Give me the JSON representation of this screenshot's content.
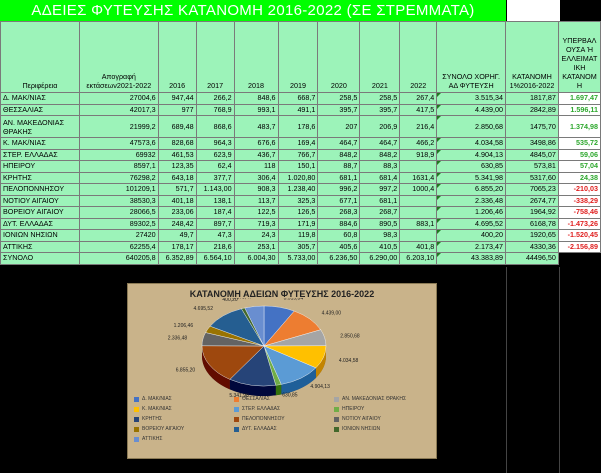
{
  "title": "ΑΔΕΙΕΣ ΦΥΤΕΥΣΗΣ ΚΑΤΑΝΟΜΗ 2016-2022 (ΣΕ ΣΤΡΕΜΜΑΤΑ)",
  "headers": {
    "region": "Περιφέρεια",
    "census": "Απογραφή εκτάσεων2021-2022",
    "y2016": "2016",
    "y2017": "2017",
    "y2018": "2018",
    "y2019": "2019",
    "y2020": "2020",
    "y2021": "2021",
    "y2022": "2022",
    "total": "ΣΥΝΟΛΟ ΧΟΡΗΓ. ΑΔ ΦΥΤΕΥΣΗ",
    "allocation": "ΚΑΤΑΝΟΜΗ 1%2016-2022",
    "diff": "ΥΠΕΡΒΑΛ ΟΥΣΑ Ή ΕΛΛΕΙΜΑΤ ΙΚΗ ΚΑΤΑΝΟΜ Η"
  },
  "rows": [
    {
      "region": "Δ. ΜΑΚ/ΝΙΑΣ",
      "census": "27004,6",
      "y2016": "947,44",
      "y2017": "266,2",
      "y2018": "848,6",
      "y2019": "668,7",
      "y2020": "258,5",
      "y2021": "258,5",
      "y2022": "267,4",
      "total": "3.515,34",
      "allocation": "1817,87",
      "diff": "1.697,47",
      "sign": "pos"
    },
    {
      "region": "ΘΕΣΣΑΛΙΑΣ",
      "census": "42017,3",
      "y2016": "977",
      "y2017": "768,9",
      "y2018": "993,1",
      "y2019": "491,1",
      "y2020": "395,7",
      "y2021": "395,7",
      "y2022": "417,5",
      "total": "4.439,00",
      "allocation": "2842,89",
      "diff": "1.596,11",
      "sign": "pos"
    },
    {
      "region": "ΑΝ. ΜΑΚΕΔΟΝΙΑΣ ΘΡΑΚΗΣ",
      "census": "21999,2",
      "y2016": "689,48",
      "y2017": "868,6",
      "y2018": "483,7",
      "y2019": "178,6",
      "y2020": "207",
      "y2021": "206,9",
      "y2022": "216,4",
      "total": "2.850,68",
      "allocation": "1475,70",
      "diff": "1.374,98",
      "sign": "pos",
      "tall": true
    },
    {
      "region": "Κ. ΜΑΚ/ΝΙΑΣ",
      "census": "47573,6",
      "y2016": "828,68",
      "y2017": "964,3",
      "y2018": "676,6",
      "y2019": "169,4",
      "y2020": "464,7",
      "y2021": "464,7",
      "y2022": "466,2",
      "total": "4.034,58",
      "allocation": "3498,86",
      "diff": "535,72",
      "sign": "pos"
    },
    {
      "region": "ΣΤΕΡ. ΕΛΛΑΔΑΣ",
      "census": "69932",
      "y2016": "461,53",
      "y2017": "623,9",
      "y2018": "436,7",
      "y2019": "766,7",
      "y2020": "848,2",
      "y2021": "848,2",
      "y2022": "918,9",
      "total": "4.904,13",
      "allocation": "4845,07",
      "diff": "59,06",
      "sign": "pos"
    },
    {
      "region": "ΗΠΕΙΡΟΥ",
      "census": "8597,1",
      "y2016": "123,35",
      "y2017": "62,4",
      "y2018": "118",
      "y2019": "150,1",
      "y2020": "88,7",
      "y2021": "88,3",
      "y2022": "",
      "total": "630,85",
      "allocation": "573,81",
      "diff": "57,04",
      "sign": "pos"
    },
    {
      "region": "ΚΡΗΤΗΣ",
      "census": "76298,2",
      "y2016": "643,18",
      "y2017": "377,7",
      "y2018": "306,4",
      "y2019": "1.020,80",
      "y2020": "681,1",
      "y2021": "681,4",
      "y2022": "1631,4",
      "total": "5.341,98",
      "allocation": "5317,60",
      "diff": "24,38",
      "sign": "pos"
    },
    {
      "region": "ΠΕΛΟΠΟΝΝΗΣΟΥ",
      "census": "101209,1",
      "y2016": "571,7",
      "y2017": "1.143,00",
      "y2018": "908,3",
      "y2019": "1.238,40",
      "y2020": "996,2",
      "y2021": "997,2",
      "y2022": "1000,4",
      "total": "6.855,20",
      "allocation": "7065,23",
      "diff": "-210,03",
      "sign": "neg"
    },
    {
      "region": "ΝΟΤΙΟΥ ΑΙΓΑΙΟΥ",
      "census": "38530,3",
      "y2016": "401,18",
      "y2017": "138,1",
      "y2018": "113,7",
      "y2019": "325,3",
      "y2020": "677,1",
      "y2021": "681,1",
      "y2022": "",
      "total": "2.336,48",
      "allocation": "2674,77",
      "diff": "-338,29",
      "sign": "neg"
    },
    {
      "region": "ΒΟΡΕΙΟΥ ΑΙΓΑΙΟΥ",
      "census": "28066,5",
      "y2016": "233,06",
      "y2017": "187,4",
      "y2018": "122,5",
      "y2019": "126,5",
      "y2020": "268,3",
      "y2021": "268,7",
      "y2022": "",
      "total": "1.206,46",
      "allocation": "1964,92",
      "diff": "-758,46",
      "sign": "neg"
    },
    {
      "region": "ΔΥΤ. ΕΛΛΑΔΑΣ",
      "census": "89302,5",
      "y2016": "248,42",
      "y2017": "897,7",
      "y2018": "719,3",
      "y2019": "171,9",
      "y2020": "884,6",
      "y2021": "890,5",
      "y2022": "883,1",
      "total": "4.695,52",
      "allocation": "6168,78",
      "diff": "-1.473,26",
      "sign": "neg"
    },
    {
      "region": "ΙΟΝΙΩΝ ΝΗΣΙΩΝ",
      "census": "27420",
      "y2016": "49,7",
      "y2017": "47,3",
      "y2018": "24,3",
      "y2019": "119,8",
      "y2020": "60,8",
      "y2021": "98,3",
      "y2022": "",
      "total": "400,20",
      "allocation": "1920,65",
      "diff": "-1.520,45",
      "sign": "neg"
    },
    {
      "region": "ΑΤΤΙΚΗΣ",
      "census": "62255,4",
      "y2016": "178,17",
      "y2017": "218,6",
      "y2018": "253,1",
      "y2019": "305,7",
      "y2020": "405,6",
      "y2021": "410,5",
      "y2022": "401,8",
      "total": "2.173,47",
      "allocation": "4330,36",
      "diff": "-2.156,89",
      "sign": "neg"
    },
    {
      "region": "ΣΥΝΟΛΟ",
      "census": "640205,8",
      "y2016": "6.352,89",
      "y2017": "6.564,10",
      "y2018": "6.004,30",
      "y2019": "5.733,00",
      "y2020": "6.236,50",
      "y2021": "6.290,00",
      "y2022": "6.203,10",
      "total": "43.383,89",
      "allocation": "44496,50",
      "diff": "",
      "sign": "none"
    }
  ],
  "chart_data": {
    "type": "pie",
    "title": "ΚΑΤΑΝΟΜΗ ΑΔΕΙΩΝ ΦΥΤΕΥΣΗΣ 2016-2022",
    "categories": [
      "Δ. ΜΑΚ/ΝΙΑΣ",
      "ΘΕΣΣΑΛΙΑΣ",
      "ΑΝ. ΜΑΚΕΔΟΝΙΑΣ ΘΡΑΚΗΣ",
      "Κ. ΜΑΚ/ΝΙΑΣ",
      "ΣΤΕΡ. ΕΛΛΑΔΑΣ",
      "ΗΠΕΙΡΟΥ",
      "ΚΡΗΤΗΣ",
      "ΠΕΛΟΠΟΝΝΗΣΟΥ",
      "ΝΟΤΙΟΥ ΑΙΓΑΙΟΥ",
      "ΒΟΡΕΙΟΥ ΑΙΓΑΙΟΥ",
      "ΔΥΤ. ΕΛΛΑΔΑΣ",
      "ΙΟΝΙΩΝ ΝΗΣΙΩΝ",
      "ΑΤΤΙΚΗΣ"
    ],
    "values": [
      3515.34,
      4439.0,
      2850.68,
      4034.58,
      4904.13,
      630.85,
      5341.98,
      6855.2,
      2336.48,
      1206.46,
      4695.52,
      400.2,
      2173.47
    ],
    "data_labels": [
      "3.515,34",
      "4.439,00",
      "2.850,68",
      "4.034,58",
      "4.904,13",
      "630,85",
      "5.341,98",
      "6.855,20",
      "2.336,48",
      "1.206,46",
      "4.695,52",
      "400,20",
      "2.173,47"
    ],
    "colors": [
      "#4472c4",
      "#ed7d31",
      "#a5a5a5",
      "#ffc000",
      "#5b9bd5",
      "#70ad47",
      "#264478",
      "#9e480e",
      "#636363",
      "#997300",
      "#255e91",
      "#43682b",
      "#698ed0"
    ],
    "legend_placement": "bottom"
  }
}
